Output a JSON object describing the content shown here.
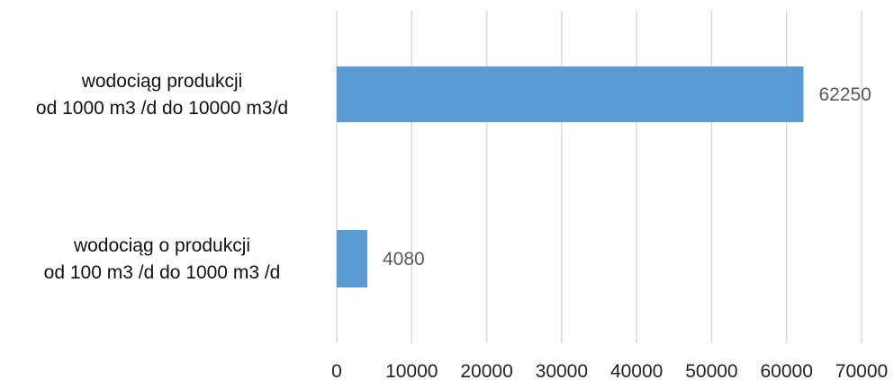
{
  "chart_data": {
    "type": "bar",
    "orientation": "horizontal",
    "title": "",
    "xlabel": "",
    "ylabel": "",
    "categories": [
      [
        "wodociąg produkcji",
        "od 1000 m3 /d  do 10000 m3/d"
      ],
      [
        "wodociąg o produkcji",
        "od 100 m3 /d do 1000 m3 /d"
      ]
    ],
    "values": [
      62250,
      4080
    ],
    "data_labels": [
      "62250",
      "4080"
    ],
    "xlim": [
      0,
      70000
    ],
    "xticks": [
      0,
      10000,
      20000,
      30000,
      40000,
      50000,
      60000,
      70000
    ],
    "xtick_labels": [
      "0",
      "10000",
      "20000",
      "30000",
      "40000",
      "50000",
      "60000",
      "70000"
    ],
    "grid": "vertical",
    "legend": "none",
    "bar_color": "#5b9bd5",
    "grid_color": "#d9d9d9"
  }
}
